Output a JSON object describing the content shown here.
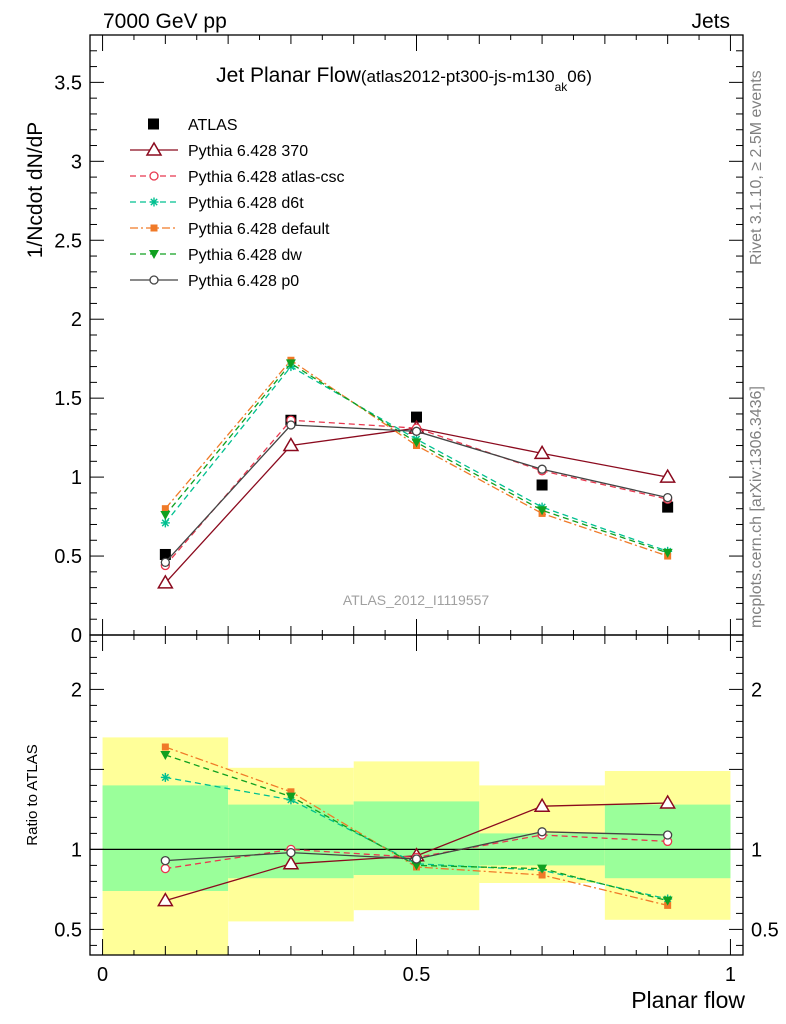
{
  "header": {
    "left": "7000 GeV pp",
    "right": "Jets"
  },
  "side_labels": {
    "rivet": "Rivet 3.1.10, ≥ 2.5M events",
    "mcplots": "mcplots.cern.ch [arXiv:1306.3436]"
  },
  "chart_data": [
    {
      "type": "line",
      "title": "Jet Planar Flow",
      "title_suffix": "(atlas2012-pt300-js-m130",
      "title_sub": "ak",
      "title_end": "06)",
      "ylabel": "1/Ncdot dN/dP",
      "xlabel": "",
      "xlim": [
        -0.02,
        1.02
      ],
      "ylim": [
        0,
        3.8
      ],
      "yticks": [
        "0",
        "0.5",
        "1",
        "1.5",
        "2",
        "2.5",
        "3",
        "3.5"
      ],
      "watermark": "ATLAS_2012_I1119557",
      "x": [
        0.1,
        0.3,
        0.5,
        0.7,
        0.9
      ],
      "series": [
        {
          "name": "ATLAS",
          "color": "#000000",
          "marker": "square-filled",
          "dash": "none",
          "values": [
            0.51,
            1.36,
            1.38,
            0.95,
            0.81
          ]
        },
        {
          "name": "Pythia 6.428 370",
          "color": "#8b0a1e",
          "marker": "triangle-open",
          "dash": "solid",
          "values": [
            0.33,
            1.2,
            1.31,
            1.15,
            1.0
          ]
        },
        {
          "name": "Pythia 6.428 atlas-csc",
          "color": "#e8384f",
          "marker": "circle-open",
          "dash": "dashed",
          "values": [
            0.44,
            1.36,
            1.31,
            1.04,
            0.86
          ]
        },
        {
          "name": "Pythia 6.428 d6t",
          "color": "#00c090",
          "marker": "asterisk",
          "dash": "dashed",
          "values": [
            0.71,
            1.7,
            1.24,
            0.81,
            0.53
          ]
        },
        {
          "name": "Pythia 6.428 default",
          "color": "#f07a28",
          "marker": "square-filled",
          "dash": "dashdot",
          "values": [
            0.8,
            1.74,
            1.2,
            0.77,
            0.5
          ]
        },
        {
          "name": "Pythia 6.428 dw",
          "color": "#10a020",
          "marker": "triangle-down-filled",
          "dash": "dashed",
          "values": [
            0.76,
            1.72,
            1.22,
            0.79,
            0.52
          ]
        },
        {
          "name": "Pythia 6.428 p0",
          "color": "#444444",
          "marker": "circle-open",
          "dash": "solid",
          "values": [
            0.46,
            1.33,
            1.29,
            1.05,
            0.87
          ]
        }
      ]
    },
    {
      "type": "line",
      "title": "",
      "ylabel": "Ratio to ATLAS",
      "xlabel": "Planar flow",
      "xlim": [
        -0.02,
        1.02
      ],
      "ylim": [
        0.34,
        2.34
      ],
      "yticks": [
        "0.5",
        "1",
        "2"
      ],
      "xticks": [
        "0",
        "0.5",
        "1"
      ],
      "reference_line": 1,
      "bands": {
        "edges": [
          0.0,
          0.2,
          0.4,
          0.6,
          0.8,
          1.0
        ],
        "inner_color": "#9aff9a",
        "outer_color": "#ffff99",
        "inner_low": [
          0.74,
          0.82,
          0.84,
          0.9,
          0.82
        ],
        "inner_high": [
          1.4,
          1.28,
          1.3,
          1.1,
          1.28
        ],
        "outer_low": [
          0.34,
          0.55,
          0.62,
          0.79,
          0.56
        ],
        "outer_high": [
          1.7,
          1.51,
          1.55,
          1.4,
          1.49
        ]
      },
      "x": [
        0.1,
        0.3,
        0.5,
        0.7,
        0.9
      ],
      "series": [
        {
          "name": "Pythia 6.428 370",
          "color": "#8b0a1e",
          "marker": "triangle-open",
          "dash": "solid",
          "values": [
            0.68,
            0.91,
            0.96,
            1.27,
            1.29
          ]
        },
        {
          "name": "Pythia 6.428 atlas-csc",
          "color": "#e8384f",
          "marker": "circle-open",
          "dash": "dashed",
          "values": [
            0.88,
            1.0,
            0.95,
            1.09,
            1.05
          ]
        },
        {
          "name": "Pythia 6.428 d6t",
          "color": "#00c090",
          "marker": "asterisk",
          "dash": "dashed",
          "values": [
            1.45,
            1.31,
            0.91,
            0.87,
            0.69
          ]
        },
        {
          "name": "Pythia 6.428 default",
          "color": "#f07a28",
          "marker": "square-filled",
          "dash": "dashdot",
          "values": [
            1.64,
            1.36,
            0.89,
            0.84,
            0.65
          ]
        },
        {
          "name": "Pythia 6.428 dw",
          "color": "#10a020",
          "marker": "triangle-down-filled",
          "dash": "dashed",
          "values": [
            1.59,
            1.33,
            0.9,
            0.88,
            0.68
          ]
        },
        {
          "name": "Pythia 6.428 p0",
          "color": "#444444",
          "marker": "circle-open",
          "dash": "solid",
          "values": [
            0.93,
            0.98,
            0.94,
            1.11,
            1.09
          ]
        }
      ]
    }
  ]
}
